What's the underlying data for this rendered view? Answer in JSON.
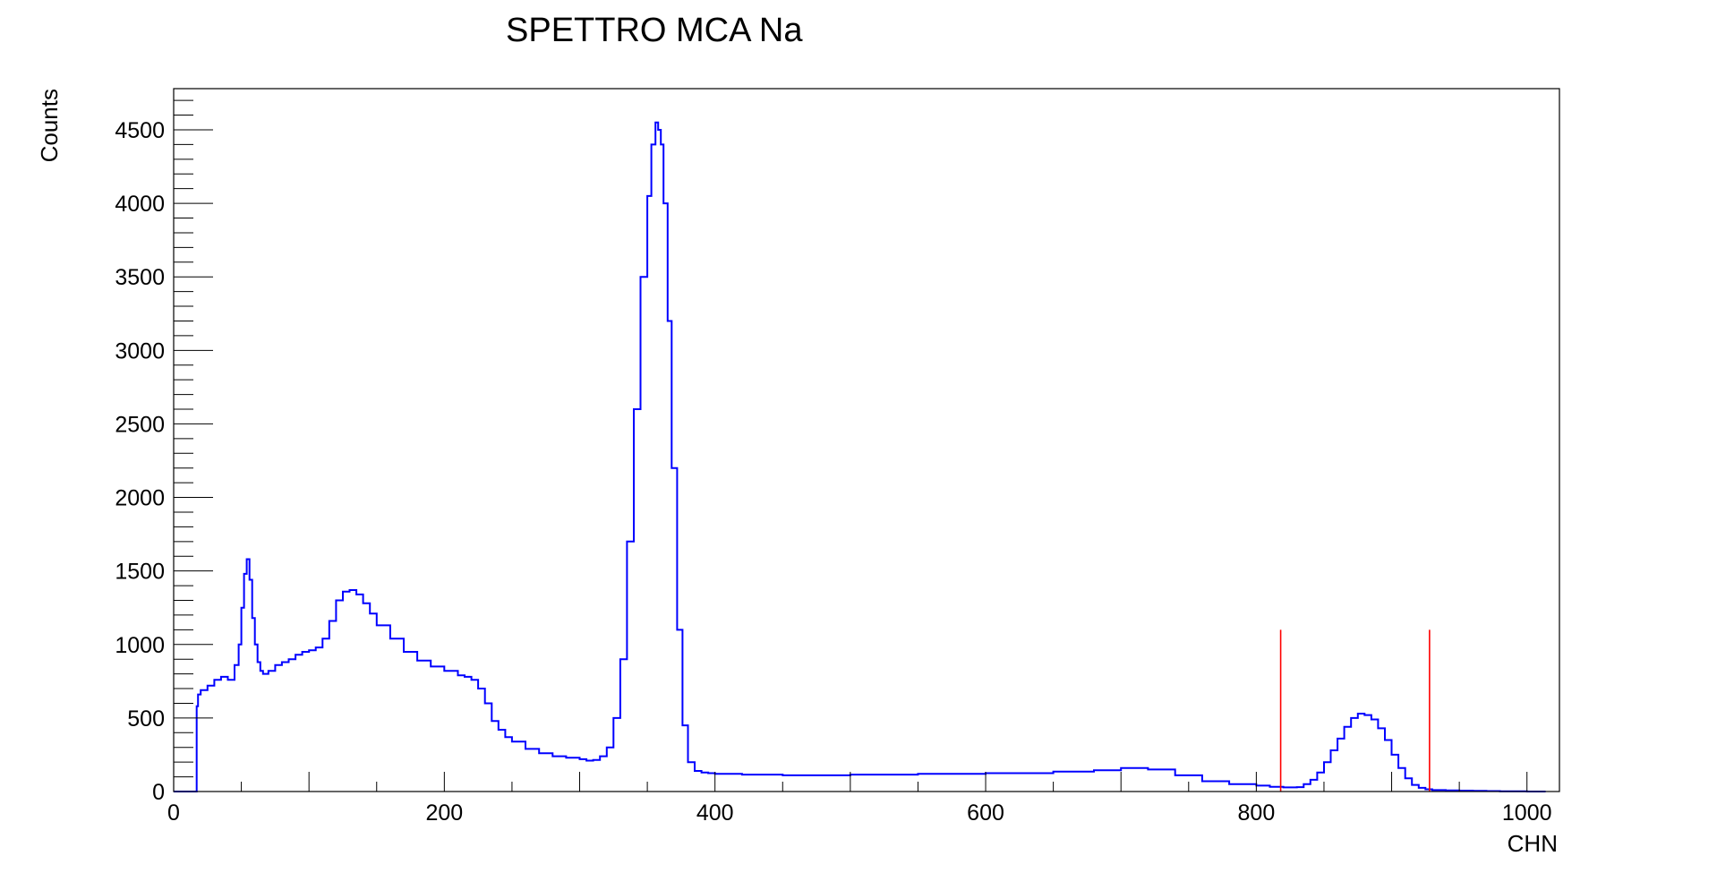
{
  "chart_data": {
    "type": "line",
    "style": "histogram-step",
    "title": "SPETTRO MCA Na",
    "xlabel": "CHN",
    "ylabel": "Counts",
    "xlim": [
      0,
      1024
    ],
    "ylim": [
      0,
      4780
    ],
    "x_ticks": [
      0,
      200,
      400,
      600,
      800,
      1000
    ],
    "x_tick_labels": [
      "0",
      "200",
      "400",
      "600",
      "800",
      "1000"
    ],
    "y_ticks": [
      0,
      500,
      1000,
      1500,
      2000,
      2500,
      3000,
      3500,
      4000,
      4500
    ],
    "y_tick_labels": [
      "0",
      "500",
      "1000",
      "1500",
      "2000",
      "2500",
      "3000",
      "3500",
      "4000",
      "4500"
    ],
    "grid": false,
    "legend": "none",
    "series": [
      {
        "color": "#0000ff",
        "x": [
          0,
          16,
          17,
          18,
          20,
          25,
          30,
          35,
          40,
          45,
          48,
          50,
          52,
          54,
          56,
          58,
          60,
          62,
          64,
          66,
          70,
          75,
          80,
          85,
          90,
          95,
          100,
          105,
          110,
          115,
          120,
          125,
          130,
          135,
          140,
          145,
          150,
          160,
          170,
          180,
          190,
          200,
          210,
          215,
          220,
          225,
          230,
          235,
          240,
          245,
          250,
          260,
          270,
          280,
          290,
          300,
          305,
          310,
          315,
          320,
          325,
          330,
          335,
          340,
          345,
          350,
          353,
          356,
          358,
          360,
          362,
          365,
          368,
          372,
          376,
          380,
          385,
          390,
          395,
          400,
          420,
          450,
          500,
          550,
          600,
          650,
          680,
          700,
          720,
          740,
          760,
          780,
          800,
          810,
          820,
          830,
          835,
          840,
          845,
          850,
          855,
          860,
          865,
          870,
          875,
          880,
          885,
          890,
          895,
          900,
          905,
          910,
          915,
          920,
          925,
          930,
          940,
          950,
          960,
          970,
          980,
          990,
          1000
        ],
        "y": [
          0,
          0,
          580,
          660,
          690,
          720,
          760,
          780,
          760,
          860,
          1000,
          1250,
          1480,
          1580,
          1440,
          1180,
          1000,
          880,
          820,
          800,
          820,
          860,
          880,
          900,
          930,
          950,
          960,
          980,
          1040,
          1160,
          1300,
          1360,
          1370,
          1340,
          1280,
          1210,
          1130,
          1040,
          950,
          890,
          850,
          820,
          790,
          780,
          760,
          700,
          600,
          480,
          420,
          370,
          340,
          290,
          260,
          240,
          230,
          220,
          210,
          215,
          240,
          300,
          500,
          900,
          1700,
          2600,
          3500,
          4050,
          4400,
          4550,
          4500,
          4400,
          4000,
          3200,
          2200,
          1100,
          450,
          200,
          140,
          130,
          125,
          120,
          115,
          110,
          115,
          120,
          125,
          135,
          145,
          160,
          150,
          110,
          70,
          50,
          40,
          32,
          28,
          30,
          50,
          80,
          130,
          200,
          280,
          360,
          440,
          500,
          530,
          520,
          490,
          430,
          350,
          250,
          160,
          90,
          45,
          25,
          15,
          10,
          8,
          6,
          5,
          3,
          2,
          1,
          0
        ]
      }
    ],
    "markers": [
      {
        "type": "vertical-line",
        "color": "#ff0000",
        "x": 818,
        "y_top": 1100
      },
      {
        "type": "vertical-line",
        "color": "#ff0000",
        "x": 928,
        "y_top": 1100
      }
    ]
  }
}
